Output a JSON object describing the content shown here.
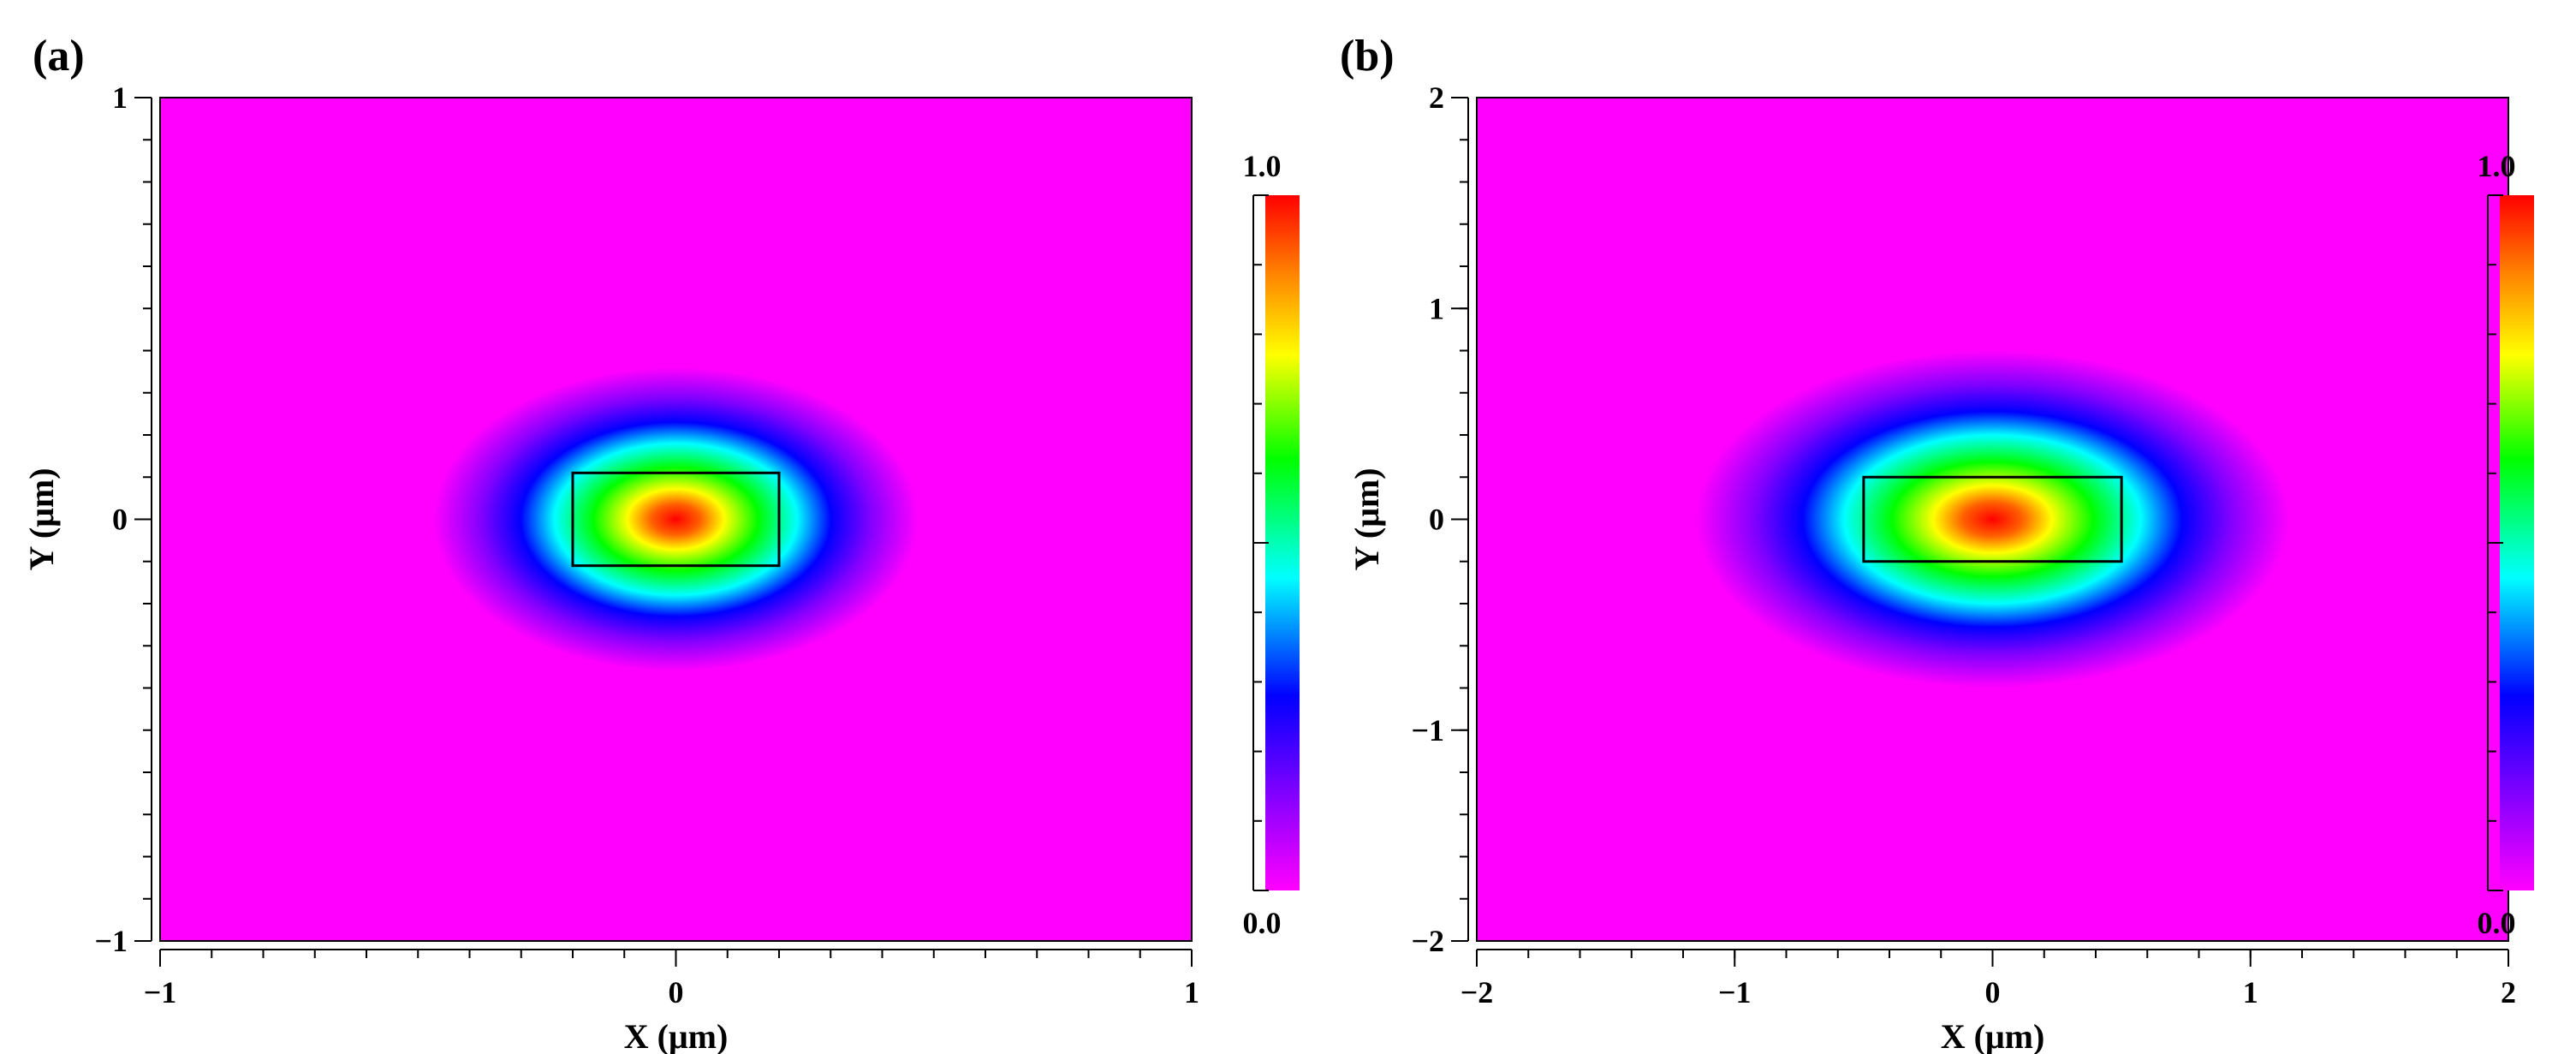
{
  "chart_data": [
    {
      "type": "heatmap",
      "panel_label": "(a)",
      "title": "",
      "xlabel": "X (μm)",
      "ylabel": "Y (μm)",
      "xlim": [
        -1,
        1
      ],
      "ylim": [
        -1,
        1
      ],
      "xticks": [
        {
          "value": -1,
          "label": "−1"
        },
        {
          "value": 0,
          "label": "0"
        },
        {
          "value": 1,
          "label": "1"
        }
      ],
      "yticks": [
        {
          "value": -1,
          "label": "−1"
        },
        {
          "value": 0,
          "label": "0"
        },
        {
          "value": 1,
          "label": "1"
        }
      ],
      "x_minor_step": 0.1,
      "y_minor_step": 0.1,
      "waveguide_core": {
        "x": [
          -0.2,
          0.2
        ],
        "y": [
          -0.11,
          0.11
        ]
      },
      "mode_profile": {
        "center": [
          0,
          0
        ],
        "peak": 1.0,
        "halfwidth_x": 0.47,
        "halfwidth_y": 0.36
      },
      "colorbar": {
        "min_label": "0.0",
        "max_label": "1.0",
        "range": [
          0.0,
          1.0
        ]
      }
    },
    {
      "type": "heatmap",
      "panel_label": "(b)",
      "title": "",
      "xlabel": "X (μm)",
      "ylabel": "Y (μm)",
      "xlim": [
        -2,
        2
      ],
      "ylim": [
        -2,
        2
      ],
      "xticks": [
        {
          "value": -2,
          "label": "−2"
        },
        {
          "value": -1,
          "label": "−1"
        },
        {
          "value": 0,
          "label": "0"
        },
        {
          "value": 1,
          "label": "1"
        },
        {
          "value": 2,
          "label": "2"
        }
      ],
      "yticks": [
        {
          "value": -2,
          "label": "−2"
        },
        {
          "value": -1,
          "label": "−1"
        },
        {
          "value": 0,
          "label": "0"
        },
        {
          "value": 1,
          "label": "1"
        },
        {
          "value": 2,
          "label": "2"
        }
      ],
      "x_minor_step": 0.2,
      "y_minor_step": 0.2,
      "waveguide_core": {
        "x": [
          -0.5,
          0.5
        ],
        "y": [
          -0.2,
          0.2
        ]
      },
      "mode_profile": {
        "center": [
          0,
          0
        ],
        "peak": 1.0,
        "halfwidth_x": 1.15,
        "halfwidth_y": 0.8
      },
      "colorbar": {
        "min_label": "0.0",
        "max_label": "1.0",
        "range": [
          0.0,
          1.0
        ]
      }
    }
  ],
  "colors": {
    "background": "#ff00ff",
    "colormap": [
      "#ff00ff",
      "#8000ff",
      "#0000ff",
      "#00ffff",
      "#00ff00",
      "#ffff00",
      "#ff8000",
      "#ff0000"
    ]
  }
}
